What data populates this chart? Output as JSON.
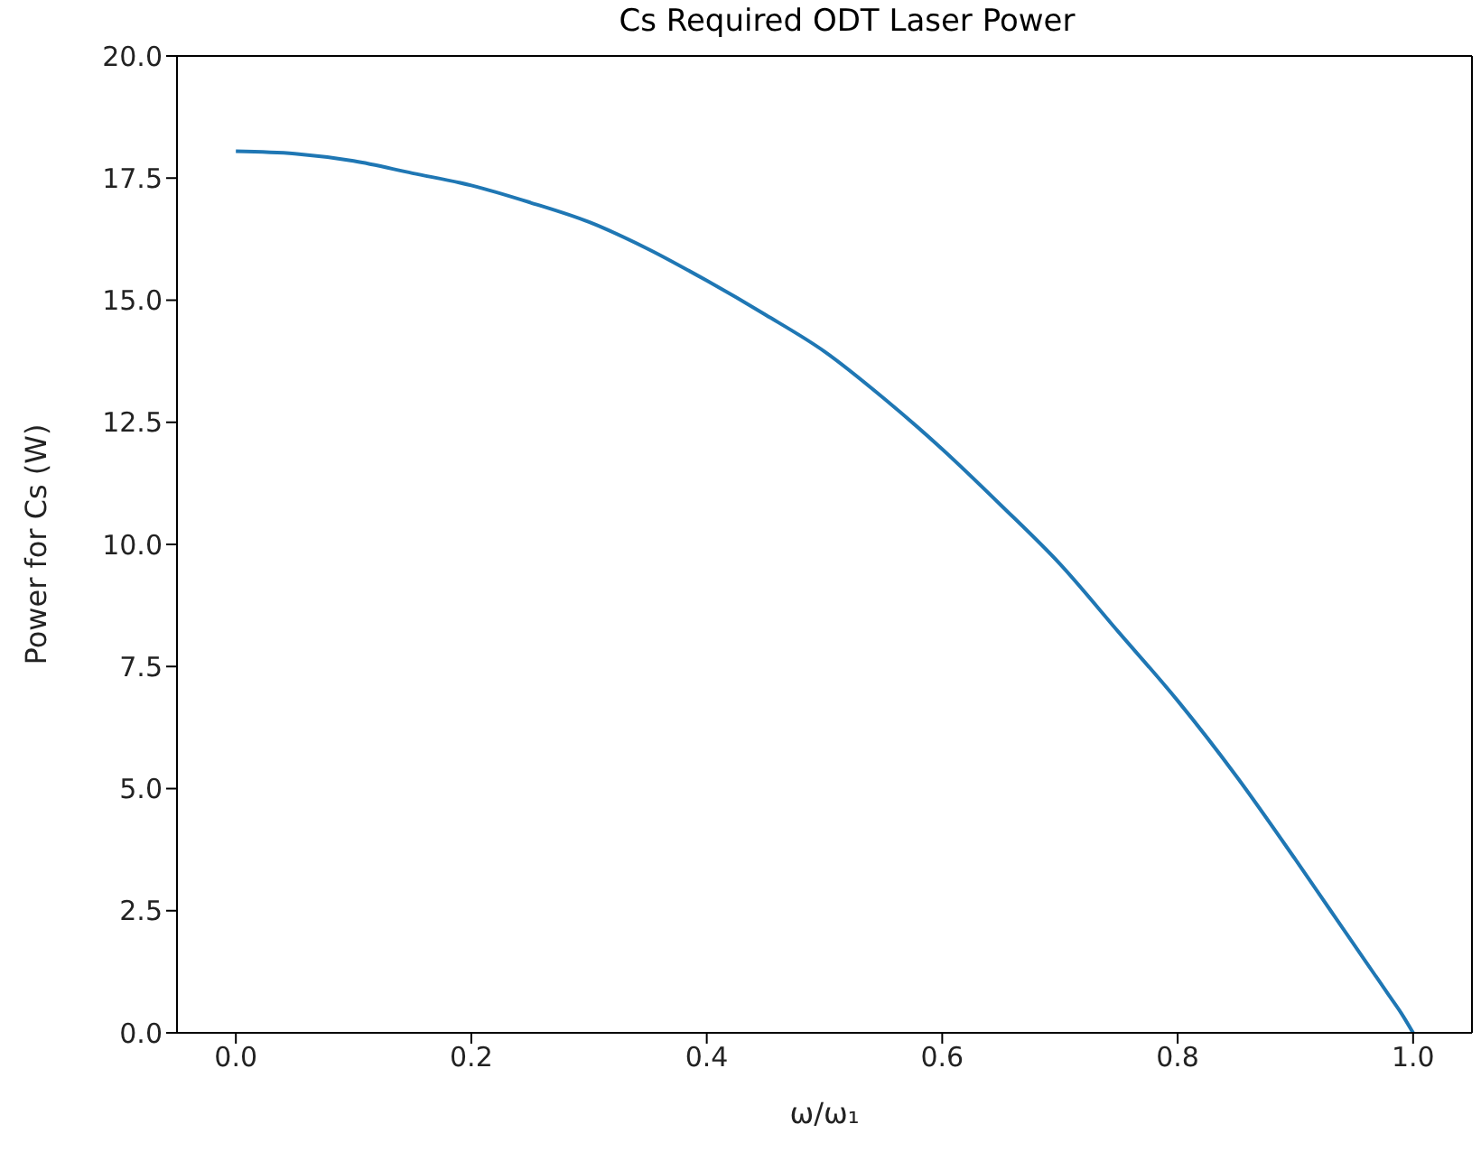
{
  "chart_data": {
    "type": "line",
    "title": "Cs Required ODT Laser Power",
    "xlabel": "ω/ω₁",
    "ylabel": "Power for Cs (W)",
    "x": [
      0,
      0.05,
      0.1,
      0.15,
      0.2,
      0.25,
      0.3,
      0.35,
      0.4,
      0.45,
      0.5,
      0.55,
      0.6,
      0.65,
      0.7,
      0.75,
      0.8,
      0.85,
      0.9,
      0.93,
      0.95,
      0.97,
      0.98,
      0.99,
      1.0
    ],
    "series": [
      {
        "color": "#1f77b4",
        "values": [
          18.05,
          18.0,
          17.85,
          17.6,
          17.35,
          17.0,
          16.6,
          16.05,
          15.4,
          14.7,
          13.95,
          13.0,
          11.95,
          10.8,
          9.6,
          8.2,
          6.8,
          5.25,
          3.55,
          2.5,
          1.8,
          1.1,
          0.75,
          0.4,
          0
        ]
      }
    ],
    "xlim": [
      -0.05,
      1.05
    ],
    "xticks": [
      {
        "value": 0,
        "label": "0.0"
      },
      0.2,
      0.4,
      0.6,
      0.8,
      {
        "value": 1,
        "label": "1.0"
      }
    ],
    "ylim": [
      0,
      20
    ],
    "yticks": [
      {
        "value": 0,
        "label": "0.0"
      },
      2.5,
      {
        "value": 5,
        "label": "5.0"
      },
      7.5,
      {
        "value": 10,
        "label": "10.0"
      },
      12.5,
      {
        "value": 15,
        "label": "15.0"
      },
      17.5,
      {
        "value": 20,
        "label": "20.0"
      }
    ],
    "grid": false,
    "legend": false,
    "marker": "none",
    "line_style": "solid"
  }
}
